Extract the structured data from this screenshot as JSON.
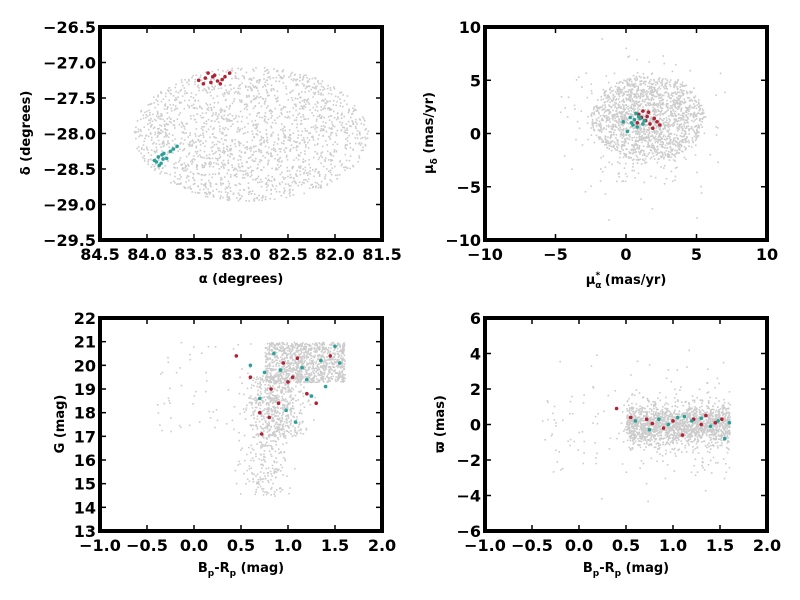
{
  "colors": {
    "background": "#cccccc",
    "cluster_a": "#b22234",
    "cluster_b": "#2aa198"
  },
  "chart_data": [
    {
      "type": "scatter",
      "id": "ra-dec",
      "xlabel": "α (degrees)",
      "ylabel": "δ (degrees)",
      "xlim": [
        84.5,
        81.5
      ],
      "ylim": [
        -29.5,
        -26.5
      ],
      "xticks": [
        "84.5",
        "84.0",
        "83.5",
        "83.0",
        "82.5",
        "82.0",
        "81.5"
      ],
      "yticks": [
        "−29.5",
        "−29.0",
        "−28.5",
        "−28.0",
        "−27.5",
        "−27.0",
        "−26.5"
      ],
      "background_field": {
        "shape": "ellipse",
        "center": [
          82.9,
          -28.0
        ],
        "radii": [
          1.25,
          0.95
        ],
        "n": 1900
      },
      "series": [
        {
          "color_key": "cluster_a",
          "points": [
            [
              83.45,
              -27.25
            ],
            [
              83.38,
              -27.22
            ],
            [
              83.32,
              -27.28
            ],
            [
              83.28,
              -27.18
            ],
            [
              83.22,
              -27.3
            ],
            [
              83.17,
              -27.2
            ],
            [
              83.12,
              -27.15
            ],
            [
              83.4,
              -27.3
            ],
            [
              83.3,
              -27.2
            ],
            [
              83.25,
              -27.26
            ],
            [
              83.35,
              -27.15
            ],
            [
              83.2,
              -27.24
            ]
          ]
        },
        {
          "color_key": "cluster_b",
          "points": [
            [
              83.92,
              -28.38
            ],
            [
              83.88,
              -28.33
            ],
            [
              83.85,
              -28.42
            ],
            [
              83.82,
              -28.28
            ],
            [
              83.87,
              -28.45
            ],
            [
              83.79,
              -28.35
            ],
            [
              83.72,
              -28.22
            ],
            [
              83.68,
              -28.18
            ],
            [
              83.9,
              -28.4
            ],
            [
              83.84,
              -28.3
            ],
            [
              83.75,
              -28.25
            ],
            [
              83.83,
              -28.36
            ]
          ]
        }
      ]
    },
    {
      "type": "scatter",
      "id": "proper-motion",
      "xlabel": "μ_α^* (mas/yr)",
      "ylabel": "μ_δ (mas/yr)",
      "xlim": [
        -10,
        10
      ],
      "ylim": [
        -10,
        10
      ],
      "xticks": [
        "−10",
        "−5",
        "0",
        "5",
        "10"
      ],
      "yticks": [
        "−10",
        "−5",
        "0",
        "5",
        "10"
      ],
      "background_field": {
        "shape": "blob",
        "center": [
          1.5,
          1.5
        ],
        "radii": [
          4.0,
          4.0
        ],
        "n": 1900
      },
      "series": [
        {
          "color_key": "cluster_a",
          "points": [
            [
              1.2,
              2.1
            ],
            [
              1.5,
              1.6
            ],
            [
              2.0,
              1.4
            ],
            [
              0.8,
              1.0
            ],
            [
              1.7,
              0.9
            ],
            [
              2.4,
              0.8
            ],
            [
              1.1,
              1.5
            ],
            [
              1.9,
              0.5
            ],
            [
              0.9,
              1.8
            ],
            [
              1.4,
              1.2
            ],
            [
              2.2,
              1.1
            ],
            [
              1.6,
              2.0
            ]
          ]
        },
        {
          "color_key": "cluster_b",
          "points": [
            [
              -0.2,
              1.1
            ],
            [
              0.3,
              1.5
            ],
            [
              0.6,
              1.3
            ],
            [
              0.9,
              1.6
            ],
            [
              1.3,
              1.2
            ],
            [
              0.5,
              0.8
            ],
            [
              0.1,
              0.2
            ],
            [
              0.7,
              1.9
            ],
            [
              1.0,
              1.4
            ],
            [
              0.4,
              1.0
            ],
            [
              1.2,
              0.9
            ],
            [
              0.8,
              0.6
            ]
          ]
        }
      ]
    },
    {
      "type": "scatter",
      "id": "cmd-g",
      "xlabel": "B_p-R_p (mag)",
      "ylabel": "G (mag)",
      "xlim": [
        -1.0,
        2.0
      ],
      "ylim": [
        13,
        22
      ],
      "y_inverted": false,
      "xticks": [
        "−1.0",
        "−0.5",
        "0.0",
        "0.5",
        "1.0",
        "1.5",
        "2.0"
      ],
      "yticks": [
        "13",
        "14",
        "15",
        "16",
        "17",
        "18",
        "19",
        "20",
        "21",
        "22"
      ],
      "background_field": {
        "shape": "cmd",
        "n": 1900
      },
      "series": [
        {
          "color_key": "cluster_a",
          "points": [
            [
              0.45,
              20.4
            ],
            [
              0.6,
              19.5
            ],
            [
              0.7,
              18.0
            ],
            [
              0.72,
              17.1
            ],
            [
              0.82,
              19.0
            ],
            [
              0.9,
              18.4
            ],
            [
              0.95,
              20.1
            ],
            [
              1.0,
              19.3
            ],
            [
              1.05,
              19.5
            ],
            [
              1.2,
              18.8
            ],
            [
              1.3,
              18.4
            ],
            [
              1.45,
              20.4
            ],
            [
              0.8,
              17.8
            ],
            [
              1.1,
              20.3
            ]
          ]
        },
        {
          "color_key": "cluster_b",
          "points": [
            [
              0.6,
              20.0
            ],
            [
              0.75,
              19.7
            ],
            [
              0.85,
              20.5
            ],
            [
              0.92,
              19.8
            ],
            [
              0.98,
              18.1
            ],
            [
              1.08,
              17.6
            ],
            [
              1.15,
              19.9
            ],
            [
              1.25,
              18.7
            ],
            [
              1.35,
              20.2
            ],
            [
              1.5,
              20.8
            ],
            [
              1.55,
              20.1
            ],
            [
              0.7,
              18.6
            ],
            [
              1.2,
              19.4
            ],
            [
              1.4,
              19.1
            ]
          ]
        }
      ]
    },
    {
      "type": "scatter",
      "id": "cmd-parallax",
      "xlabel": "B_p-R_p (mag)",
      "ylabel": "ϖ (mas)",
      "xlim": [
        -1.0,
        2.0
      ],
      "ylim": [
        -6,
        6
      ],
      "xticks": [
        "−1.0",
        "−0.5",
        "0.0",
        "0.5",
        "1.0",
        "1.5",
        "2.0"
      ],
      "yticks": [
        "−6",
        "−4",
        "−2",
        "0",
        "2",
        "4",
        "6"
      ],
      "background_field": {
        "shape": "band",
        "n": 1900
      },
      "series": [
        {
          "color_key": "cluster_a",
          "points": [
            [
              0.4,
              0.9
            ],
            [
              0.72,
              0.3
            ],
            [
              0.78,
              0.05
            ],
            [
              0.9,
              -0.2
            ],
            [
              1.0,
              0.2
            ],
            [
              1.1,
              -0.6
            ],
            [
              1.22,
              0.3
            ],
            [
              1.35,
              0.5
            ],
            [
              1.45,
              0.1
            ],
            [
              1.52,
              0.3
            ],
            [
              0.55,
              0.4
            ],
            [
              1.3,
              0.0
            ]
          ]
        },
        {
          "color_key": "cluster_b",
          "points": [
            [
              0.6,
              0.2
            ],
            [
              0.75,
              -0.3
            ],
            [
              0.85,
              0.3
            ],
            [
              0.95,
              0.0
            ],
            [
              1.05,
              0.4
            ],
            [
              1.12,
              0.45
            ],
            [
              1.2,
              0.2
            ],
            [
              1.3,
              0.35
            ],
            [
              1.4,
              -0.1
            ],
            [
              1.48,
              0.2
            ],
            [
              1.55,
              -0.8
            ],
            [
              1.6,
              0.1
            ]
          ]
        }
      ]
    }
  ]
}
